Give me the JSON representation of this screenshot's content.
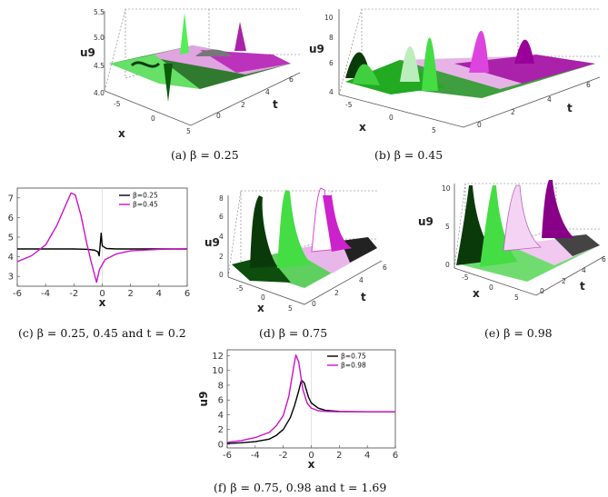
{
  "captions": {
    "a": "(a) β = 0.25",
    "b": "(b) β = 0.45",
    "c": "(c) β = 0.25, 0.45 and t = 0.2",
    "d": "(d) β = 0.75",
    "e": "(e) β = 0.98",
    "f": "(f) β = 0.75, 0.98 and t = 1.69"
  },
  "colors": {
    "green": "#22cc22",
    "dark_green": "#0a3a0a",
    "magenta": "#cc11cc",
    "black": "#000000"
  },
  "chart_data": [
    {
      "id": "a",
      "type": "surface",
      "zlabel": "u9",
      "xlabel": "x",
      "ylabel": "t",
      "zticks": [
        "4.0",
        "4.5",
        "5.0",
        "5.5"
      ],
      "xticks": [
        "-5",
        "0",
        "5"
      ],
      "yticks": [
        "0",
        "2",
        "4",
        "6"
      ]
    },
    {
      "id": "b",
      "type": "surface",
      "zlabel": "u9",
      "xlabel": "x",
      "ylabel": "t",
      "zticks": [
        "4",
        "6",
        "8",
        "10"
      ],
      "xticks": [
        "-5",
        "0",
        "5"
      ],
      "yticks": [
        "0",
        "2",
        "4",
        "6"
      ]
    },
    {
      "id": "c",
      "type": "line",
      "xlabel": "x",
      "ylabel": "u9",
      "xlim": [
        -6,
        6
      ],
      "ylim": [
        2.5,
        7.5
      ],
      "xticks": [
        "-6",
        "-4",
        "-2",
        "0",
        "2",
        "4",
        "6"
      ],
      "yticks": [
        "3",
        "4",
        "5",
        "6",
        "7"
      ],
      "legend_position": "top-right",
      "series": [
        {
          "name": "β=0.25",
          "color": "#000000",
          "points": [
            [
              -6,
              4.4
            ],
            [
              -4,
              4.4
            ],
            [
              -2,
              4.4
            ],
            [
              -1,
              4.38
            ],
            [
              -0.5,
              4.33
            ],
            [
              -0.3,
              4.25
            ],
            [
              -0.22,
              4.05
            ],
            [
              -0.15,
              4.6
            ],
            [
              -0.08,
              5.2
            ],
            [
              0,
              4.55
            ],
            [
              0.3,
              4.42
            ],
            [
              1,
              4.4
            ],
            [
              3,
              4.4
            ],
            [
              6,
              4.4
            ]
          ]
        },
        {
          "name": "β=0.45",
          "color": "#cc11cc",
          "points": [
            [
              -6,
              3.75
            ],
            [
              -5,
              4.05
            ],
            [
              -4,
              4.6
            ],
            [
              -3.2,
              5.6
            ],
            [
              -2.6,
              6.6
            ],
            [
              -2.2,
              7.25
            ],
            [
              -1.9,
              7.15
            ],
            [
              -1.5,
              6.1
            ],
            [
              -1.1,
              4.7
            ],
            [
              -0.8,
              3.8
            ],
            [
              -0.55,
              3.1
            ],
            [
              -0.4,
              2.7
            ],
            [
              -0.2,
              3.35
            ],
            [
              0.2,
              3.85
            ],
            [
              1,
              4.15
            ],
            [
              2,
              4.3
            ],
            [
              4,
              4.38
            ],
            [
              6,
              4.4
            ]
          ]
        }
      ]
    },
    {
      "id": "d",
      "type": "surface",
      "zlabel": "u9",
      "xlabel": "x",
      "ylabel": "t",
      "zticks": [
        "0",
        "2",
        "4",
        "6",
        "8"
      ],
      "xticks": [
        "-5",
        "0",
        "5"
      ],
      "yticks": [
        "0",
        "2",
        "4",
        "6"
      ]
    },
    {
      "id": "e",
      "type": "surface",
      "zlabel": "u9",
      "xlabel": "x",
      "ylabel": "t",
      "zticks": [
        "0",
        "5",
        "10"
      ],
      "xticks": [
        "-5",
        "0",
        "5"
      ],
      "yticks": [
        "0",
        "2",
        "4",
        "6"
      ]
    },
    {
      "id": "f",
      "type": "line",
      "xlabel": "x",
      "ylabel": "u9",
      "xlim": [
        -6,
        6
      ],
      "ylim": [
        -0.5,
        12.8
      ],
      "xticks": [
        "-6",
        "-4",
        "-2",
        "0",
        "2",
        "4",
        "6"
      ],
      "yticks": [
        "0",
        "2",
        "4",
        "6",
        "8",
        "10",
        "12"
      ],
      "legend_position": "top-right",
      "series": [
        {
          "name": "β=0.75",
          "color": "#000000",
          "points": [
            [
              -6,
              0.1
            ],
            [
              -5,
              0.2
            ],
            [
              -4,
              0.35
            ],
            [
              -3,
              0.7
            ],
            [
              -2.5,
              1.2
            ],
            [
              -2,
              2.0
            ],
            [
              -1.5,
              3.6
            ],
            [
              -1.2,
              5.2
            ],
            [
              -0.9,
              7.2
            ],
            [
              -0.7,
              8.7
            ],
            [
              -0.5,
              8.3
            ],
            [
              -0.2,
              6.4
            ],
            [
              0,
              5.6
            ],
            [
              0.5,
              4.9
            ],
            [
              1,
              4.6
            ],
            [
              2,
              4.45
            ],
            [
              4,
              4.4
            ],
            [
              6,
              4.4
            ]
          ]
        },
        {
          "name": "β=0.98",
          "color": "#cc11cc",
          "points": [
            [
              -6,
              0.25
            ],
            [
              -5,
              0.5
            ],
            [
              -4,
              0.9
            ],
            [
              -3,
              1.6
            ],
            [
              -2.5,
              2.5
            ],
            [
              -2,
              3.9
            ],
            [
              -1.6,
              6.5
            ],
            [
              -1.3,
              10.0
            ],
            [
              -1.1,
              12.1
            ],
            [
              -0.9,
              11.2
            ],
            [
              -0.6,
              7.4
            ],
            [
              -0.3,
              5.6
            ],
            [
              0,
              4.9
            ],
            [
              0.5,
              4.55
            ],
            [
              1,
              4.45
            ],
            [
              2,
              4.4
            ],
            [
              6,
              4.4
            ]
          ]
        }
      ]
    }
  ]
}
